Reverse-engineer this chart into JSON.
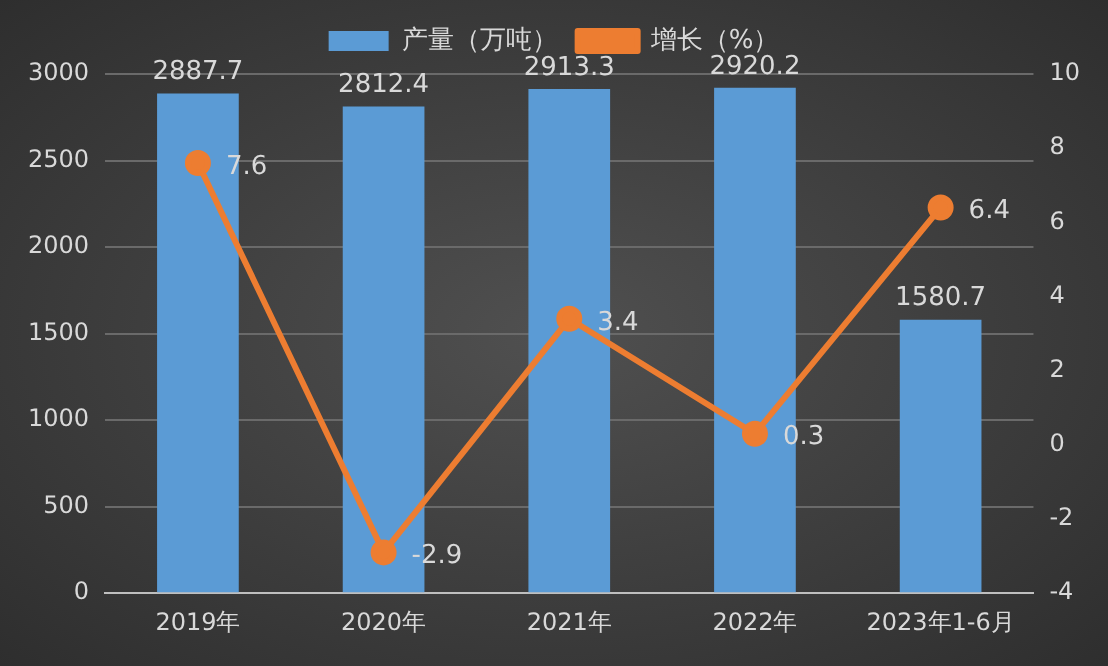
{
  "chart_data": {
    "type": "bar",
    "categories": [
      "2019年",
      "2020年",
      "2021年",
      "2022年",
      "2023年1-6月"
    ],
    "series": [
      {
        "name": "产量（万吨）",
        "color": "#5b9bd5",
        "values": [
          2887.7,
          2812.4,
          2913.3,
          2920.2,
          1580.7
        ]
      },
      {
        "name": "增长（%）",
        "type": "line",
        "axis": "y2",
        "color": "#ed7d31",
        "values": [
          7.6,
          -2.9,
          3.4,
          0.3,
          6.4
        ]
      }
    ],
    "ylim": [
      0,
      3000
    ],
    "yticks": [
      0,
      500,
      1000,
      1500,
      2000,
      2500,
      3000
    ],
    "y2lim": [
      -4,
      10
    ],
    "y2ticks": [
      -4,
      -2,
      0,
      2,
      4,
      6,
      8,
      10
    ],
    "grid": "y",
    "legend": "top",
    "data_labels": true,
    "marker": "circle"
  }
}
